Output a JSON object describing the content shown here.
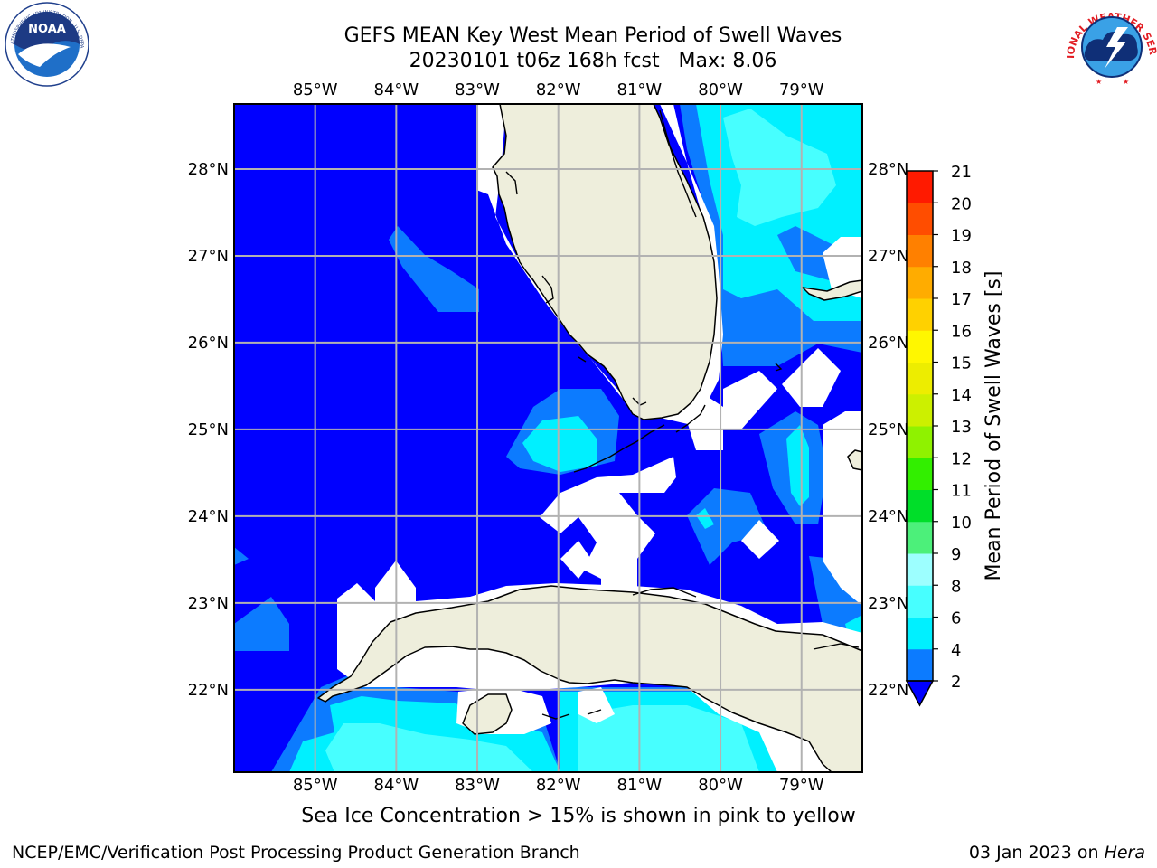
{
  "title_line1": "GEFS MEAN Key West Mean Period of Swell Waves",
  "title_line2": "20230101 t06z 168h fcst   Max: 8.06",
  "logos": {
    "left": {
      "name": "noaa-logo",
      "text": "NOAA",
      "ring": "NATIONAL OCEANIC AND ATMOSPHERIC ADMINISTRATION · U.S. DEPARTMENT OF COMMERCE"
    },
    "right": {
      "name": "nws-logo",
      "ring": "NATIONAL WEATHER SERVICE"
    }
  },
  "map": {
    "lon_range": [
      -86.0,
      -78.25
    ],
    "lat_range": [
      21.05,
      28.75
    ],
    "lon_ticks": [
      {
        "value": -85,
        "label": "85°W"
      },
      {
        "value": -84,
        "label": "84°W"
      },
      {
        "value": -83,
        "label": "83°W"
      },
      {
        "value": -82,
        "label": "82°W"
      },
      {
        "value": -81,
        "label": "81°W"
      },
      {
        "value": -80,
        "label": "80°W"
      },
      {
        "value": -79,
        "label": "79°W"
      }
    ],
    "lat_ticks": [
      {
        "value": 28,
        "label": "28°N"
      },
      {
        "value": 27,
        "label": "27°N"
      },
      {
        "value": 26,
        "label": "26°N"
      },
      {
        "value": 25,
        "label": "25°N"
      },
      {
        "value": 24,
        "label": "24°N"
      },
      {
        "value": 23,
        "label": "23°N"
      },
      {
        "value": 22,
        "label": "22°N"
      }
    ],
    "grid": true,
    "colors": {
      "ocean_low": "#0000ff",
      "band_2_4": "#0c7bff",
      "band_4_6": "#00f0ff",
      "band_6_8": "#47ffff",
      "land": "#eeeedc",
      "no_data": "#ffffff"
    }
  },
  "colorbar": {
    "label": "Mean Period of Swell Waves [s]",
    "tick_labels": [
      "2",
      "4",
      "6",
      "8",
      "9",
      "10",
      "11",
      "12",
      "13",
      "14",
      "15",
      "16",
      "17",
      "18",
      "19",
      "20",
      "21"
    ],
    "colors": [
      "#0c7bff",
      "#00f0ff",
      "#47ffff",
      "#9dffff",
      "#4cf07a",
      "#00de29",
      "#32ef00",
      "#8ff200",
      "#ccf000",
      "#eded00",
      "#fff700",
      "#ffd100",
      "#ffac00",
      "#ff8000",
      "#ff4d00",
      "#ff1a00"
    ],
    "under_color": "#0000ff",
    "extend": "min"
  },
  "footer": {
    "note": "Sea Ice Concentration > 15% is shown in pink to yellow",
    "left": "NCEP/EMC/Verification Post Processing Product Generation Branch",
    "right_date": "03 Jan 2023 on ",
    "right_host": "Hera"
  }
}
